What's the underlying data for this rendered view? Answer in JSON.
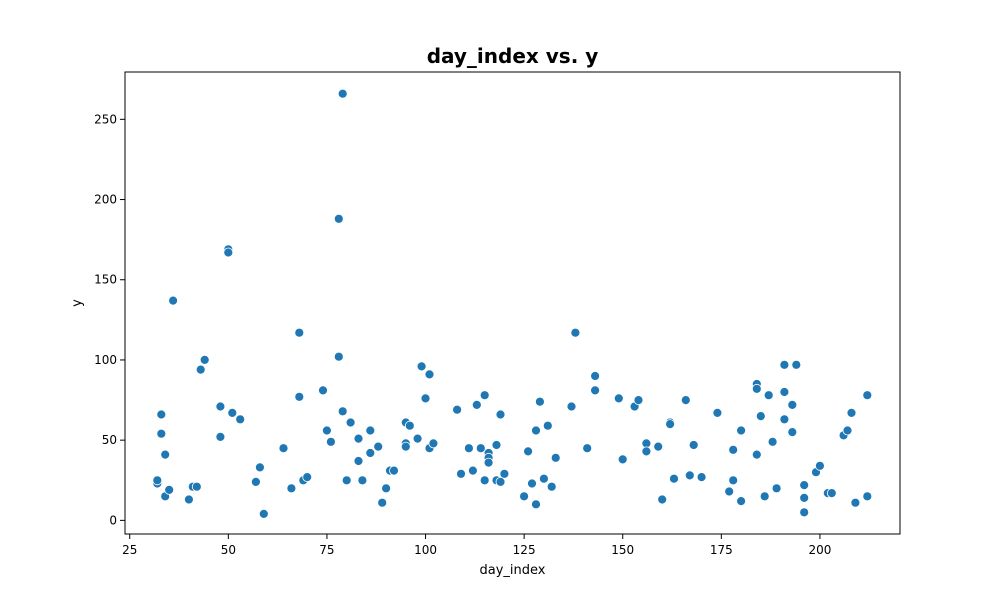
{
  "chart_data": {
    "type": "scatter",
    "title": "day_index vs. y",
    "xlabel": "day_index",
    "ylabel": "y",
    "xlim": [
      23.8,
      220.3
    ],
    "ylim": [
      -8.5,
      279.5
    ],
    "xticks": [
      25,
      50,
      75,
      100,
      125,
      150,
      175,
      200
    ],
    "yticks": [
      0,
      50,
      100,
      150,
      200,
      250
    ],
    "grid": false,
    "legend": "none",
    "marker_color": "#1f77b4",
    "points": [
      [
        32,
        23
      ],
      [
        32,
        25
      ],
      [
        33,
        66
      ],
      [
        33,
        54
      ],
      [
        34,
        41
      ],
      [
        34,
        15
      ],
      [
        35,
        19
      ],
      [
        36,
        137
      ],
      [
        40,
        13
      ],
      [
        41,
        21
      ],
      [
        42,
        21
      ],
      [
        43,
        94
      ],
      [
        44,
        100
      ],
      [
        48,
        71
      ],
      [
        48,
        52
      ],
      [
        50,
        169
      ],
      [
        50,
        167
      ],
      [
        51,
        67
      ],
      [
        53,
        63
      ],
      [
        57,
        24
      ],
      [
        58,
        33
      ],
      [
        59,
        4
      ],
      [
        64,
        45
      ],
      [
        66,
        20
      ],
      [
        68,
        117
      ],
      [
        68,
        77
      ],
      [
        69,
        25
      ],
      [
        70,
        27
      ],
      [
        74,
        81
      ],
      [
        75,
        56
      ],
      [
        76,
        49
      ],
      [
        78,
        102
      ],
      [
        78,
        188
      ],
      [
        79,
        266
      ],
      [
        79,
        68
      ],
      [
        80,
        25
      ],
      [
        81,
        61
      ],
      [
        83,
        51
      ],
      [
        83,
        37
      ],
      [
        84,
        25
      ],
      [
        86,
        56
      ],
      [
        86,
        42
      ],
      [
        88,
        46
      ],
      [
        89,
        11
      ],
      [
        90,
        20
      ],
      [
        91,
        31
      ],
      [
        92,
        31
      ],
      [
        95,
        61
      ],
      [
        95,
        48
      ],
      [
        95,
        46
      ],
      [
        96,
        59
      ],
      [
        98,
        51
      ],
      [
        99,
        96
      ],
      [
        100,
        76
      ],
      [
        101,
        91
      ],
      [
        101,
        45
      ],
      [
        102,
        48
      ],
      [
        108,
        69
      ],
      [
        109,
        29
      ],
      [
        111,
        45
      ],
      [
        112,
        31
      ],
      [
        113,
        72
      ],
      [
        114,
        45
      ],
      [
        115,
        78
      ],
      [
        115,
        25
      ],
      [
        116,
        42
      ],
      [
        116,
        39
      ],
      [
        116,
        36
      ],
      [
        118,
        47
      ],
      [
        118,
        25
      ],
      [
        119,
        66
      ],
      [
        119,
        24
      ],
      [
        120,
        29
      ],
      [
        125,
        15
      ],
      [
        126,
        43
      ],
      [
        127,
        23
      ],
      [
        128,
        56
      ],
      [
        128,
        10
      ],
      [
        129,
        74
      ],
      [
        130,
        26
      ],
      [
        131,
        59
      ],
      [
        132,
        21
      ],
      [
        133,
        39
      ],
      [
        137,
        71
      ],
      [
        138,
        117
      ],
      [
        141,
        45
      ],
      [
        143,
        90
      ],
      [
        143,
        81
      ],
      [
        149,
        76
      ],
      [
        150,
        38
      ],
      [
        153,
        71
      ],
      [
        154,
        75
      ],
      [
        156,
        48
      ],
      [
        156,
        43
      ],
      [
        159,
        46
      ],
      [
        160,
        13
      ],
      [
        162,
        61
      ],
      [
        162,
        60
      ],
      [
        163,
        26
      ],
      [
        166,
        75
      ],
      [
        167,
        28
      ],
      [
        168,
        47
      ],
      [
        170,
        27
      ],
      [
        174,
        67
      ],
      [
        177,
        18
      ],
      [
        178,
        44
      ],
      [
        178,
        25
      ],
      [
        180,
        56
      ],
      [
        180,
        12
      ],
      [
        184,
        85
      ],
      [
        184,
        82
      ],
      [
        184,
        41
      ],
      [
        185,
        65
      ],
      [
        186,
        15
      ],
      [
        187,
        78
      ],
      [
        188,
        49
      ],
      [
        189,
        20
      ],
      [
        191,
        97
      ],
      [
        191,
        80
      ],
      [
        191,
        63
      ],
      [
        193,
        72
      ],
      [
        193,
        55
      ],
      [
        194,
        97
      ],
      [
        196,
        22
      ],
      [
        196,
        14
      ],
      [
        196,
        5
      ],
      [
        199,
        30
      ],
      [
        200,
        34
      ],
      [
        202,
        17
      ],
      [
        203,
        17
      ],
      [
        206,
        53
      ],
      [
        207,
        56
      ],
      [
        208,
        67
      ],
      [
        209,
        11
      ],
      [
        212,
        78
      ],
      [
        212,
        15
      ]
    ]
  }
}
